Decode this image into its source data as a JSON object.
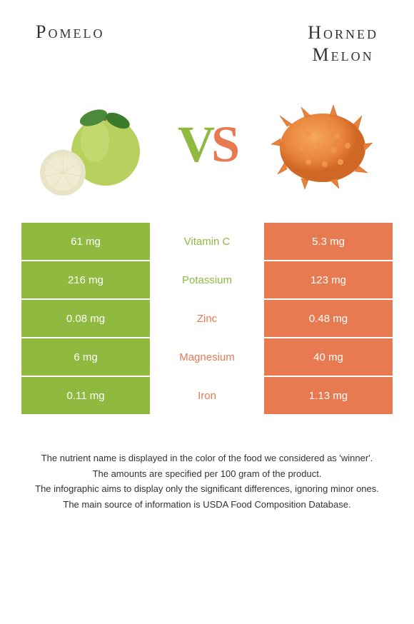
{
  "header": {
    "left_title": "Pomelo",
    "right_title_line1": "Horned",
    "right_title_line2": "Melon"
  },
  "vs": {
    "v": "V",
    "s": "S"
  },
  "colors": {
    "left_bg": "#8fb93f",
    "right_bg": "#e87a52",
    "mid_bg": "#ffffff",
    "winner_left": "#8fb93f",
    "winner_right": "#e87a52"
  },
  "rows": [
    {
      "left": "61 mg",
      "mid": "Vitamin C",
      "right": "5.3 mg",
      "winner": "left"
    },
    {
      "left": "216 mg",
      "mid": "Potassium",
      "right": "123 mg",
      "winner": "left"
    },
    {
      "left": "0.08 mg",
      "mid": "Zinc",
      "right": "0.48 mg",
      "winner": "right"
    },
    {
      "left": "6 mg",
      "mid": "Magnesium",
      "right": "40 mg",
      "winner": "right"
    },
    {
      "left": "0.11 mg",
      "mid": "Iron",
      "right": "1.13 mg",
      "winner": "right"
    }
  ],
  "footer": {
    "line1": "The nutrient name is displayed in the color of the food we considered as 'winner'.",
    "line2": "The amounts are specified per 100 gram of the product.",
    "line3": "The infographic aims to display only the significant differences, ignoring minor ones.",
    "line4": "The main source of information is USDA Food Composition Database."
  }
}
